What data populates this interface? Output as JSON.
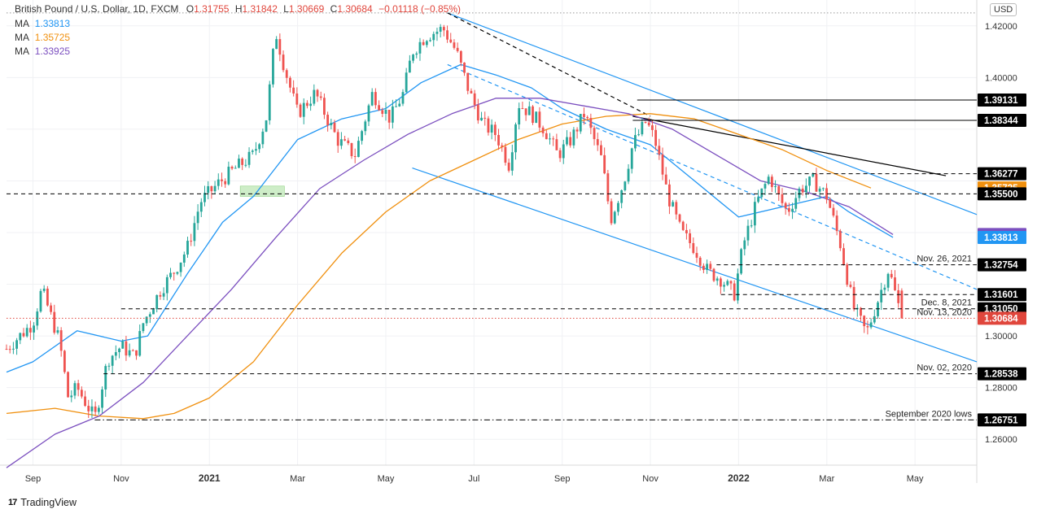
{
  "header": {
    "pair": "British Pound / U.S. Dollar, 1D, FXCM",
    "open_label": "O",
    "open": "1.31755",
    "high_label": "H",
    "high": "1.31842",
    "low_label": "L",
    "low": "1.30669",
    "close_label": "C",
    "close": "1.30684",
    "change": "−0.01118 (−0.85%)",
    "ma": [
      {
        "label": "MA",
        "value": "1.33813",
        "color": "#2196f3"
      },
      {
        "label": "MA",
        "value": "1.35725",
        "color": "#f0900f"
      },
      {
        "label": "MA",
        "value": "1.33925",
        "color": "#7b4fbf"
      }
    ]
  },
  "currency_button": "USD",
  "branding": "TradingView",
  "chart_data": {
    "type": "candlestick",
    "instrument": "GBP/USD",
    "interval": "1D",
    "ylim": [
      1.25,
      1.43
    ],
    "y_ticks": [
      "1.26000",
      "1.28000",
      "1.30000",
      "1.40000",
      "1.42000"
    ],
    "x_labels": [
      "Sep",
      "Nov",
      "2021",
      "Mar",
      "May",
      "Jul",
      "Sep",
      "Nov",
      "2022",
      "Mar",
      "May"
    ],
    "x_label_pos": [
      0,
      2,
      4,
      6,
      8,
      10,
      12,
      14,
      16,
      18,
      20
    ],
    "x_range": [
      -0.6,
      21.4
    ],
    "price_path": [
      [
        -0.6,
        1.295
      ],
      [
        0.0,
        1.305
      ],
      [
        0.2,
        1.318
      ],
      [
        0.6,
        1.298
      ],
      [
        0.8,
        1.276
      ],
      [
        1.0,
        1.28
      ],
      [
        1.4,
        1.268
      ],
      [
        1.7,
        1.291
      ],
      [
        2.0,
        1.296
      ],
      [
        2.3,
        1.292
      ],
      [
        2.5,
        1.305
      ],
      [
        2.9,
        1.318
      ],
      [
        3.2,
        1.325
      ],
      [
        3.5,
        1.334
      ],
      [
        3.8,
        1.352
      ],
      [
        4.2,
        1.359
      ],
      [
        4.6,
        1.365
      ],
      [
        5.0,
        1.37
      ],
      [
        5.3,
        1.385
      ],
      [
        5.5,
        1.418
      ],
      [
        5.7,
        1.404
      ],
      [
        6.0,
        1.386
      ],
      [
        6.4,
        1.394
      ],
      [
        6.9,
        1.376
      ],
      [
        7.3,
        1.37
      ],
      [
        7.7,
        1.394
      ],
      [
        8.1,
        1.384
      ],
      [
        8.4,
        1.394
      ],
      [
        8.6,
        1.41
      ],
      [
        8.9,
        1.416
      ],
      [
        9.3,
        1.419
      ],
      [
        9.6,
        1.41
      ],
      [
        9.9,
        1.394
      ],
      [
        10.2,
        1.382
      ],
      [
        10.5,
        1.378
      ],
      [
        10.8,
        1.366
      ],
      [
        11.0,
        1.39
      ],
      [
        11.3,
        1.386
      ],
      [
        11.6,
        1.38
      ],
      [
        11.9,
        1.37
      ],
      [
        12.2,
        1.376
      ],
      [
        12.5,
        1.386
      ],
      [
        12.9,
        1.368
      ],
      [
        13.1,
        1.345
      ],
      [
        13.4,
        1.36
      ],
      [
        13.6,
        1.374
      ],
      [
        13.9,
        1.383
      ],
      [
        14.1,
        1.376
      ],
      [
        14.4,
        1.354
      ],
      [
        14.7,
        1.34
      ],
      [
        15.0,
        1.334
      ],
      [
        15.3,
        1.325
      ],
      [
        15.6,
        1.322
      ],
      [
        15.9,
        1.316
      ],
      [
        16.1,
        1.335
      ],
      [
        16.4,
        1.351
      ],
      [
        16.7,
        1.362
      ],
      [
        16.9,
        1.354
      ],
      [
        17.1,
        1.348
      ],
      [
        17.4,
        1.357
      ],
      [
        17.7,
        1.36
      ],
      [
        18.0,
        1.354
      ],
      [
        18.3,
        1.336
      ],
      [
        18.6,
        1.311
      ],
      [
        18.9,
        1.301
      ],
      [
        19.2,
        1.316
      ],
      [
        19.4,
        1.326
      ],
      [
        19.7,
        1.307
      ]
    ],
    "moving_averages": [
      {
        "name": "MA",
        "value": 1.33813,
        "color": "#2196f3",
        "points": [
          [
            -0.6,
            1.286
          ],
          [
            0.0,
            1.29
          ],
          [
            1.0,
            1.302
          ],
          [
            2.0,
            1.298
          ],
          [
            2.6,
            1.3
          ],
          [
            3.5,
            1.324
          ],
          [
            4.3,
            1.344
          ],
          [
            5.0,
            1.354
          ],
          [
            6.0,
            1.376
          ],
          [
            7.0,
            1.384
          ],
          [
            8.0,
            1.388
          ],
          [
            8.8,
            1.398
          ],
          [
            9.7,
            1.405
          ],
          [
            10.5,
            1.401
          ],
          [
            11.3,
            1.396
          ],
          [
            12.0,
            1.388
          ],
          [
            13.0,
            1.38
          ],
          [
            14.0,
            1.374
          ],
          [
            15.0,
            1.36
          ],
          [
            16.0,
            1.346
          ],
          [
            17.0,
            1.35
          ],
          [
            18.0,
            1.354
          ],
          [
            18.5,
            1.348
          ],
          [
            19.5,
            1.33813
          ]
        ]
      },
      {
        "name": "MA",
        "value": 1.35725,
        "color": "#f0900f",
        "points": [
          [
            -0.6,
            1.27
          ],
          [
            0.5,
            1.272
          ],
          [
            1.5,
            1.269
          ],
          [
            2.5,
            1.268
          ],
          [
            3.2,
            1.27
          ],
          [
            4.0,
            1.276
          ],
          [
            5.0,
            1.29
          ],
          [
            6.0,
            1.312
          ],
          [
            7.0,
            1.332
          ],
          [
            8.0,
            1.348
          ],
          [
            9.0,
            1.36
          ],
          [
            10.0,
            1.368
          ],
          [
            11.0,
            1.376
          ],
          [
            12.0,
            1.382
          ],
          [
            13.0,
            1.385
          ],
          [
            14.0,
            1.386
          ],
          [
            15.0,
            1.384
          ],
          [
            16.0,
            1.378
          ],
          [
            17.0,
            1.372
          ],
          [
            18.0,
            1.364
          ],
          [
            19.0,
            1.35725
          ]
        ]
      },
      {
        "name": "MA",
        "value": 1.33925,
        "color": "#7b4fbf",
        "points": [
          [
            -0.6,
            1.249
          ],
          [
            0.5,
            1.262
          ],
          [
            1.5,
            1.269
          ],
          [
            2.5,
            1.282
          ],
          [
            3.5,
            1.3
          ],
          [
            4.5,
            1.318
          ],
          [
            5.5,
            1.338
          ],
          [
            6.5,
            1.357
          ],
          [
            7.5,
            1.368
          ],
          [
            8.5,
            1.378
          ],
          [
            9.5,
            1.386
          ],
          [
            10.5,
            1.392
          ],
          [
            11.5,
            1.392
          ],
          [
            12.5,
            1.389
          ],
          [
            13.5,
            1.386
          ],
          [
            14.5,
            1.38
          ],
          [
            15.5,
            1.37
          ],
          [
            16.5,
            1.36
          ],
          [
            17.5,
            1.356
          ],
          [
            18.5,
            1.35
          ],
          [
            19.5,
            1.33925
          ]
        ]
      }
    ],
    "levels": [
      {
        "price": 1.39131,
        "label": "1.39131",
        "x_start": 13.7,
        "style": "solid",
        "color": "#000000",
        "annotation": ""
      },
      {
        "price": 1.38344,
        "label": "1.38344",
        "x_start": 13.6,
        "style": "solid",
        "color": "#000000",
        "annotation": ""
      },
      {
        "price": 1.36277,
        "label": "1.36277",
        "x_start": 17.0,
        "style": "dashed",
        "color": "#000000",
        "annotation": ""
      },
      {
        "price": 1.35725,
        "label": "1.35725",
        "x_start": null,
        "style": "none",
        "color": "#f0900f",
        "annotation": ""
      },
      {
        "price": 1.355,
        "label": "1.35500",
        "x_start": -0.6,
        "style": "dashed",
        "color": "#000000",
        "annotation": ""
      },
      {
        "price": 1.33925,
        "label": "1.33925",
        "x_start": null,
        "style": "none",
        "color": "#7b4fbf",
        "annotation": ""
      },
      {
        "price": 1.33813,
        "label": "1.33813",
        "x_start": null,
        "style": "none",
        "color": "#2196f3",
        "annotation": ""
      },
      {
        "price": 1.32754,
        "label": "1.32754",
        "x_start": 15.5,
        "style": "dashed",
        "color": "#000000",
        "annotation": "Nov. 26, 2021"
      },
      {
        "price": 1.31601,
        "label": "1.31601",
        "x_start": 15.6,
        "style": "dashed",
        "color": "#000000",
        "annotation": ""
      },
      {
        "price": 1.3105,
        "label": "1.31050",
        "x_start": 2.0,
        "style": "dashed",
        "color": "#000000",
        "annotation": "Dec. 8, 2021"
      },
      {
        "price": 1.30684,
        "label": "1.30684",
        "x_start": -0.6,
        "style": "dotted",
        "color": "#e0463c",
        "annotation": "Nov. 13, 2020"
      },
      {
        "price": 1.28538,
        "label": "1.28538",
        "x_start": 1.6,
        "style": "dashed",
        "color": "#000000",
        "annotation": "Nov. 02, 2020"
      },
      {
        "price": 1.26751,
        "label": "1.26751",
        "x_start": 1.4,
        "style": "dashdot",
        "color": "#000000",
        "annotation": "September 2020 lows"
      }
    ],
    "trendlines": [
      {
        "from": [
          9.4,
          1.425
        ],
        "to": [
          21.4,
          1.347
        ],
        "color": "#2196f3",
        "style": "solid"
      },
      {
        "from": [
          8.6,
          1.365
        ],
        "to": [
          21.4,
          1.29
        ],
        "color": "#2196f3",
        "style": "solid"
      },
      {
        "from": [
          9.4,
          1.405
        ],
        "to": [
          21.4,
          1.318
        ],
        "color": "#2196f3",
        "style": "dashed"
      },
      {
        "from": [
          9.4,
          1.425
        ],
        "to": [
          14.0,
          1.385
        ],
        "color": "#000000",
        "style": "dashed"
      },
      {
        "from": [
          13.6,
          1.385
        ],
        "to": [
          20.7,
          1.362
        ],
        "color": "#000000",
        "style": "solid"
      }
    ],
    "peak_line": {
      "price": 1.425,
      "x_start": -0.6,
      "color": "#999999",
      "style": "dotted"
    },
    "boxes": [
      {
        "x0": 4.7,
        "x1": 5.7,
        "y0": 1.354,
        "y1": 1.358,
        "color": "#b9e6b1"
      }
    ],
    "grid": true,
    "legend": "top-left"
  }
}
